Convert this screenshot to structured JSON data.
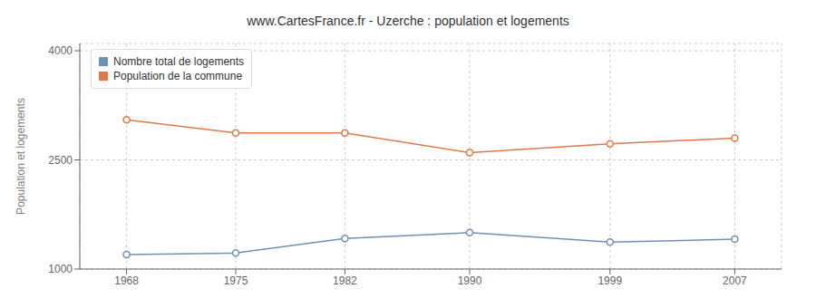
{
  "chart_data": {
    "type": "line",
    "title": "www.CartesFrance.fr - Uzerche : population et logements",
    "ylabel": "Population et logements",
    "x": [
      1968,
      1975,
      1982,
      1990,
      1999,
      2007
    ],
    "series": [
      {
        "name": "Nombre total de logements",
        "color": "#7090b8",
        "marker": "o",
        "values": [
          1200,
          1220,
          1420,
          1500,
          1370,
          1410
        ]
      },
      {
        "name": "Population de la commune",
        "color": "#e07848",
        "marker": "o",
        "values": [
          3050,
          2870,
          2870,
          2600,
          2720,
          2800
        ]
      }
    ],
    "xlim": [
      1965,
      2010
    ],
    "xticks": [
      1968,
      1975,
      1982,
      1990,
      1999,
      2007
    ],
    "ylim": [
      1000,
      4100
    ],
    "yticks": [
      1000,
      2500,
      4000
    ],
    "grid": true,
    "legend": "upper left"
  }
}
